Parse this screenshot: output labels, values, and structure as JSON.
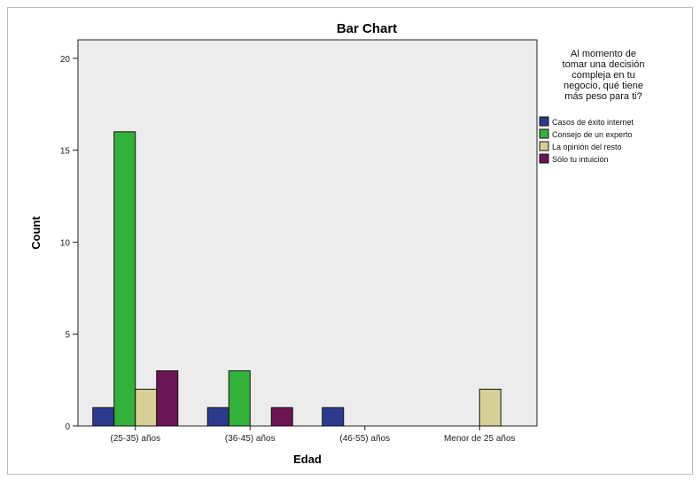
{
  "chart_data": {
    "type": "bar",
    "title": "Bar Chart",
    "xlabel": "Edad",
    "ylabel": "Count",
    "ylim": [
      0,
      21
    ],
    "yticks": [
      0,
      5,
      10,
      15,
      20
    ],
    "categories": [
      "(25-35) años",
      "(36-45) años",
      "(46-55) años",
      "Menor de 25 años"
    ],
    "legend_title": [
      "Al momento de",
      "tomar una decisión",
      "compleja en tu",
      "negocio, qué tiene",
      "más peso para ti?"
    ],
    "legend_position": "right",
    "grid": false,
    "plot_background": "#ececec",
    "series": [
      {
        "name": "Casos de éxito internet",
        "color": "#2c3b8e",
        "values": [
          1,
          1,
          1,
          0
        ]
      },
      {
        "name": "Consejo de un experto",
        "color": "#33b23b",
        "values": [
          16,
          3,
          0,
          0
        ]
      },
      {
        "name": "La opinión del resto",
        "color": "#d8cf95",
        "values": [
          2,
          0,
          0,
          2
        ]
      },
      {
        "name": "Sólo tu intuición",
        "color": "#6b1554",
        "values": [
          3,
          1,
          0,
          0
        ]
      }
    ]
  }
}
